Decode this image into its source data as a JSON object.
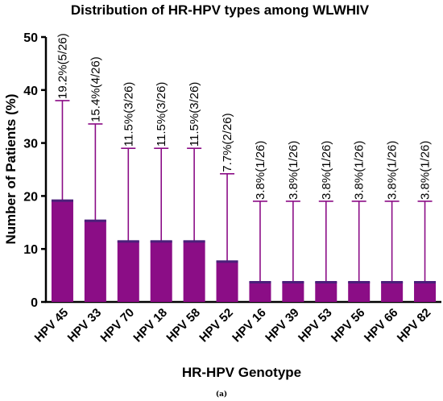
{
  "chart_data": {
    "type": "bar",
    "title": "Distribution of HR-HPV types among WLWHIV",
    "xlabel": "HR-HPV Genotype",
    "ylabel": "Number of Patients (%)",
    "ylim": [
      0,
      50
    ],
    "yticks": [
      "0",
      "10",
      "20",
      "30",
      "40",
      "50"
    ],
    "categories": [
      "HPV 45",
      "HPV 33",
      "HPV 70",
      "HPV 18",
      "HPV 58",
      "HPV 52",
      "HPV 16",
      "HPV 39",
      "HPV 53",
      "HPV 56",
      "HPV 66",
      "HPV 82"
    ],
    "values": [
      19.2,
      15.4,
      11.5,
      11.5,
      11.5,
      7.7,
      3.8,
      3.8,
      3.8,
      3.8,
      3.8,
      3.8
    ],
    "error_upper": [
      38,
      33.6,
      29,
      29,
      29,
      24.2,
      19,
      19,
      19,
      19,
      19,
      19
    ],
    "data_labels": [
      "19.2%(5/26)",
      "15.4%(4/26)",
      "11.5%(3/26)",
      "11.5%(3/26)",
      "11.5%(3/26)",
      "7.7%(2/26)",
      "3.8%(1/26)",
      "3.8%(1/26)",
      "3.8%(1/26)",
      "3.8%(1/26)",
      "3.8%(1/26)",
      "3.8%(1/26)"
    ],
    "bar_color": "#8b0d86",
    "cap_color": "#4a1f7a",
    "grid": false,
    "caption": "(a)"
  }
}
